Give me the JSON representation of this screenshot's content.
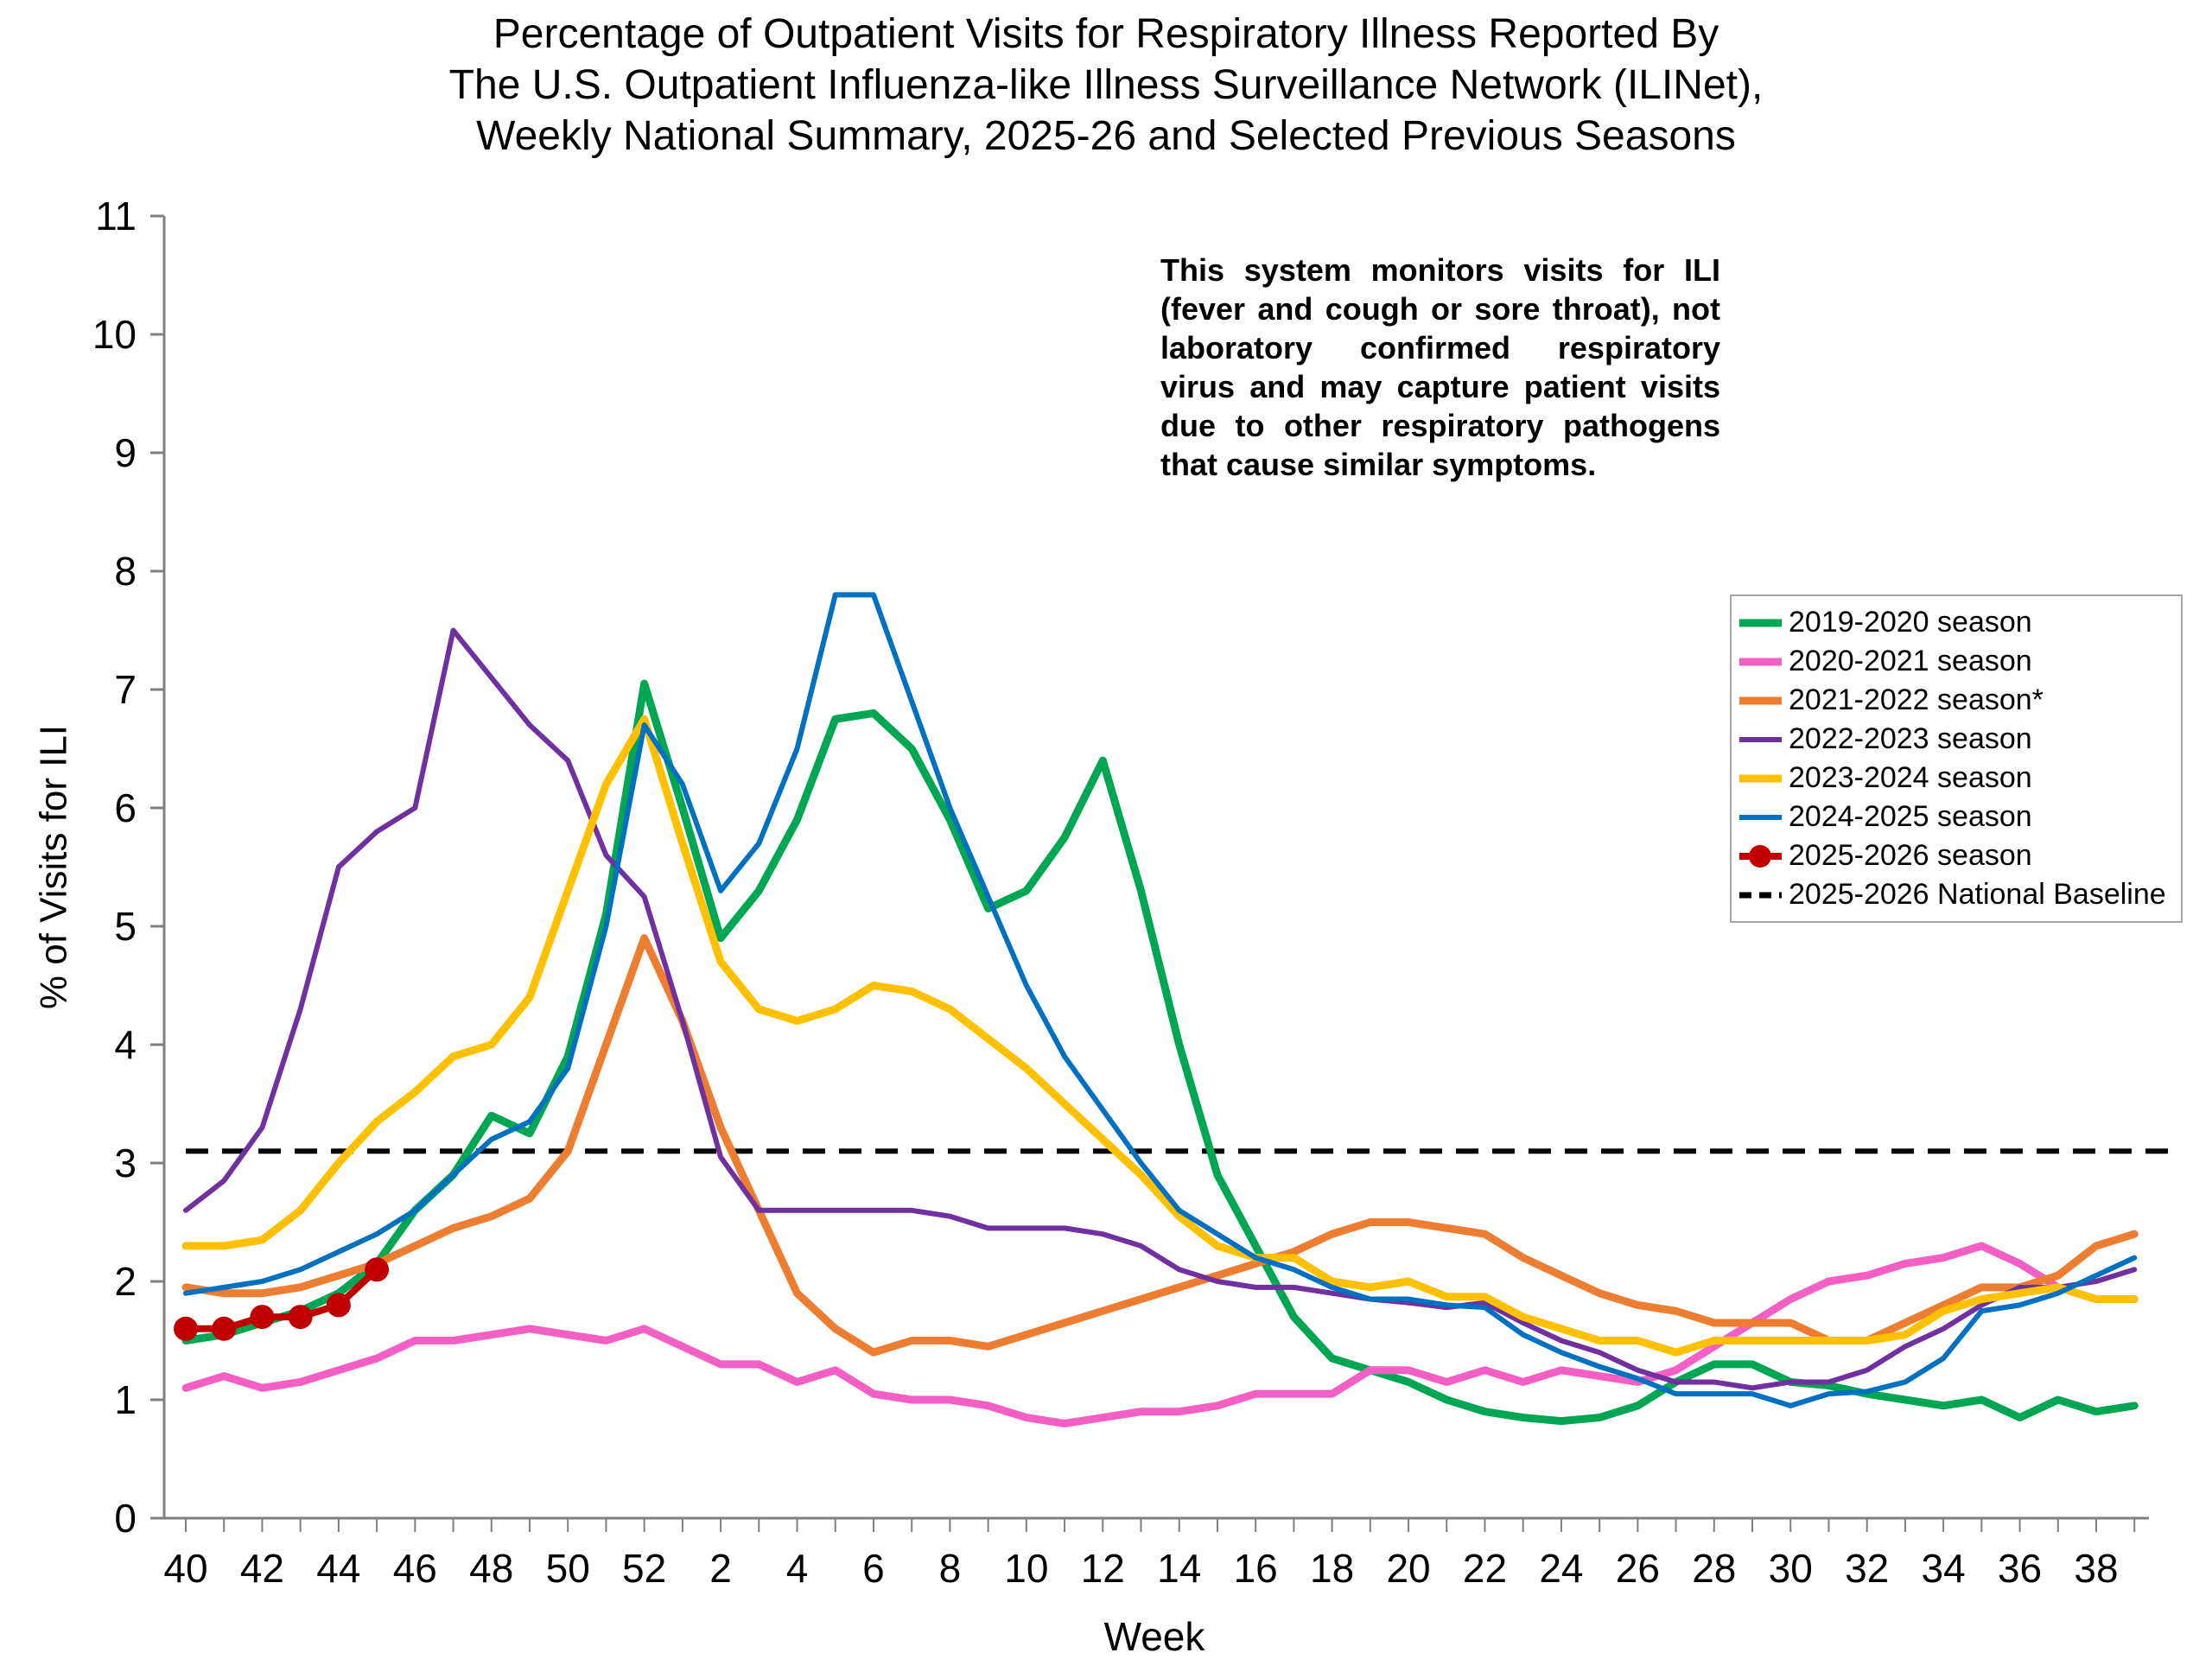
{
  "title": {
    "lines": [
      "Percentage of Outpatient Visits for Respiratory Illness Reported By",
      "The U.S. Outpatient Influenza-like Illness Surveillance Network (ILINet),",
      "Weekly National Summary, 2025-26 and Selected Previous Seasons"
    ]
  },
  "annotation": {
    "text": "This system monitors visits for ILI (fever and cough or sore throat), not laboratory confirmed respiratory virus and may capture patient visits due to other respiratory pathogens that cause similar symptoms."
  },
  "chart_data": {
    "type": "line",
    "title": "Percentage of Outpatient Visits for Respiratory Illness (ILINet), Weekly National Summary",
    "xlabel": "Week",
    "ylabel": "% of Visits for ILI",
    "ylim": [
      0,
      11
    ],
    "yticks": [
      0,
      1,
      2,
      3,
      4,
      5,
      6,
      7,
      8,
      9,
      10,
      11
    ],
    "grid": false,
    "legend_position": "right",
    "x_categories": [
      "40",
      "41",
      "42",
      "43",
      "44",
      "45",
      "46",
      "47",
      "48",
      "49",
      "50",
      "51",
      "52",
      "1",
      "2",
      "3",
      "4",
      "5",
      "6",
      "7",
      "8",
      "9",
      "10",
      "11",
      "12",
      "13",
      "14",
      "15",
      "16",
      "17",
      "18",
      "19",
      "20",
      "21",
      "22",
      "23",
      "24",
      "25",
      "26",
      "27",
      "28",
      "29",
      "30",
      "31",
      "32",
      "33",
      "34",
      "35",
      "36",
      "37",
      "38",
      "39"
    ],
    "x_tick_labels": [
      "40",
      "42",
      "44",
      "46",
      "48",
      "50",
      "52",
      "2",
      "4",
      "6",
      "8",
      "10",
      "12",
      "14",
      "16",
      "18",
      "20",
      "22",
      "24",
      "26",
      "28",
      "30",
      "32",
      "34",
      "36",
      "38"
    ],
    "baseline": {
      "label": "2025-2026 National Baseline",
      "value": 3.1,
      "color": "#000000",
      "style": "dashed"
    },
    "series": [
      {
        "name": "2019-2020 season",
        "color": "#00A651",
        "line_width": 9,
        "values": [
          1.5,
          1.55,
          1.65,
          1.75,
          1.9,
          2.15,
          2.6,
          2.9,
          3.4,
          3.25,
          3.9,
          5.1,
          7.05,
          6.0,
          4.9,
          5.3,
          5.9,
          6.75,
          6.8,
          6.5,
          5.9,
          5.15,
          5.3,
          5.75,
          6.4,
          5.3,
          4.0,
          2.9,
          2.3,
          1.7,
          1.35,
          1.25,
          1.15,
          1.0,
          0.9,
          0.85,
          0.82,
          0.85,
          0.95,
          1.15,
          1.3,
          1.3,
          1.15,
          1.12,
          1.05,
          1.0,
          0.95,
          1.0,
          0.85,
          1.0,
          0.9,
          0.95
        ]
      },
      {
        "name": "2020-2021 season",
        "color": "#F45FC4",
        "line_width": 9,
        "values": [
          1.1,
          1.2,
          1.1,
          1.15,
          1.25,
          1.35,
          1.5,
          1.5,
          1.55,
          1.6,
          1.55,
          1.5,
          1.6,
          1.45,
          1.3,
          1.3,
          1.15,
          1.25,
          1.05,
          1.0,
          1.0,
          0.95,
          0.85,
          0.8,
          0.85,
          0.9,
          0.9,
          0.95,
          1.05,
          1.05,
          1.05,
          1.25,
          1.25,
          1.15,
          1.25,
          1.15,
          1.25,
          1.2,
          1.15,
          1.25,
          1.45,
          1.65,
          1.85,
          2.0,
          2.05,
          2.15,
          2.2,
          2.3,
          2.15,
          1.95,
          1.85,
          1.85
        ]
      },
      {
        "name": "2021-2022 season*",
        "color": "#ED7D31",
        "line_width": 9,
        "values": [
          1.95,
          1.9,
          1.9,
          1.95,
          2.05,
          2.15,
          2.3,
          2.45,
          2.55,
          2.7,
          3.1,
          4.0,
          4.9,
          4.2,
          3.3,
          2.6,
          1.9,
          1.6,
          1.4,
          1.5,
          1.5,
          1.45,
          1.55,
          1.65,
          1.75,
          1.85,
          1.95,
          2.05,
          2.15,
          2.25,
          2.4,
          2.5,
          2.5,
          2.45,
          2.4,
          2.2,
          2.05,
          1.9,
          1.8,
          1.75,
          1.65,
          1.65,
          1.65,
          1.5,
          1.5,
          1.65,
          1.8,
          1.95,
          1.95,
          2.05,
          2.3,
          2.4
        ]
      },
      {
        "name": "2022-2023 season",
        "color": "#7030A0",
        "line_width": 6,
        "values": [
          2.6,
          2.85,
          3.3,
          4.3,
          5.5,
          5.8,
          6.0,
          7.5,
          7.1,
          6.7,
          6.4,
          5.6,
          5.25,
          4.2,
          3.05,
          2.6,
          2.6,
          2.6,
          2.6,
          2.6,
          2.55,
          2.45,
          2.45,
          2.45,
          2.4,
          2.3,
          2.1,
          2.0,
          1.95,
          1.95,
          1.9,
          1.85,
          1.82,
          1.78,
          1.82,
          1.65,
          1.5,
          1.4,
          1.25,
          1.15,
          1.15,
          1.1,
          1.15,
          1.15,
          1.25,
          1.45,
          1.6,
          1.8,
          1.95,
          1.95,
          2.0,
          2.1
        ]
      },
      {
        "name": "2023-2024 season",
        "color": "#FFC000",
        "line_width": 9,
        "values": [
          2.3,
          2.3,
          2.35,
          2.6,
          3.0,
          3.35,
          3.6,
          3.9,
          4.0,
          4.4,
          5.3,
          6.2,
          6.75,
          5.7,
          4.7,
          4.3,
          4.2,
          4.3,
          4.5,
          4.45,
          4.3,
          4.05,
          3.8,
          3.5,
          3.2,
          2.9,
          2.55,
          2.3,
          2.2,
          2.2,
          2.0,
          1.95,
          2.0,
          1.87,
          1.87,
          1.7,
          1.6,
          1.5,
          1.5,
          1.4,
          1.5,
          1.5,
          1.5,
          1.5,
          1.5,
          1.55,
          1.75,
          1.85,
          1.9,
          1.95,
          1.85,
          1.85
        ]
      },
      {
        "name": "2024-2025 season",
        "color": "#0070C0",
        "line_width": 6,
        "values": [
          1.9,
          1.95,
          2.0,
          2.1,
          2.25,
          2.4,
          2.6,
          2.9,
          3.2,
          3.35,
          3.8,
          5.0,
          6.7,
          6.2,
          5.3,
          5.7,
          6.5,
          7.8,
          7.8,
          6.9,
          6.0,
          5.25,
          4.5,
          3.9,
          3.45,
          3.0,
          2.6,
          2.4,
          2.2,
          2.1,
          1.95,
          1.85,
          1.85,
          1.8,
          1.78,
          1.55,
          1.4,
          1.28,
          1.18,
          1.05,
          1.05,
          1.05,
          0.95,
          1.05,
          1.07,
          1.15,
          1.35,
          1.75,
          1.8,
          1.9,
          2.05,
          2.2
        ]
      },
      {
        "name": "2025-2026 season",
        "color": "#C00000",
        "line_width": 8,
        "marker": "circle",
        "marker_radius": 14,
        "values": [
          1.6,
          1.6,
          1.7,
          1.7,
          1.8,
          2.1
        ]
      }
    ]
  }
}
